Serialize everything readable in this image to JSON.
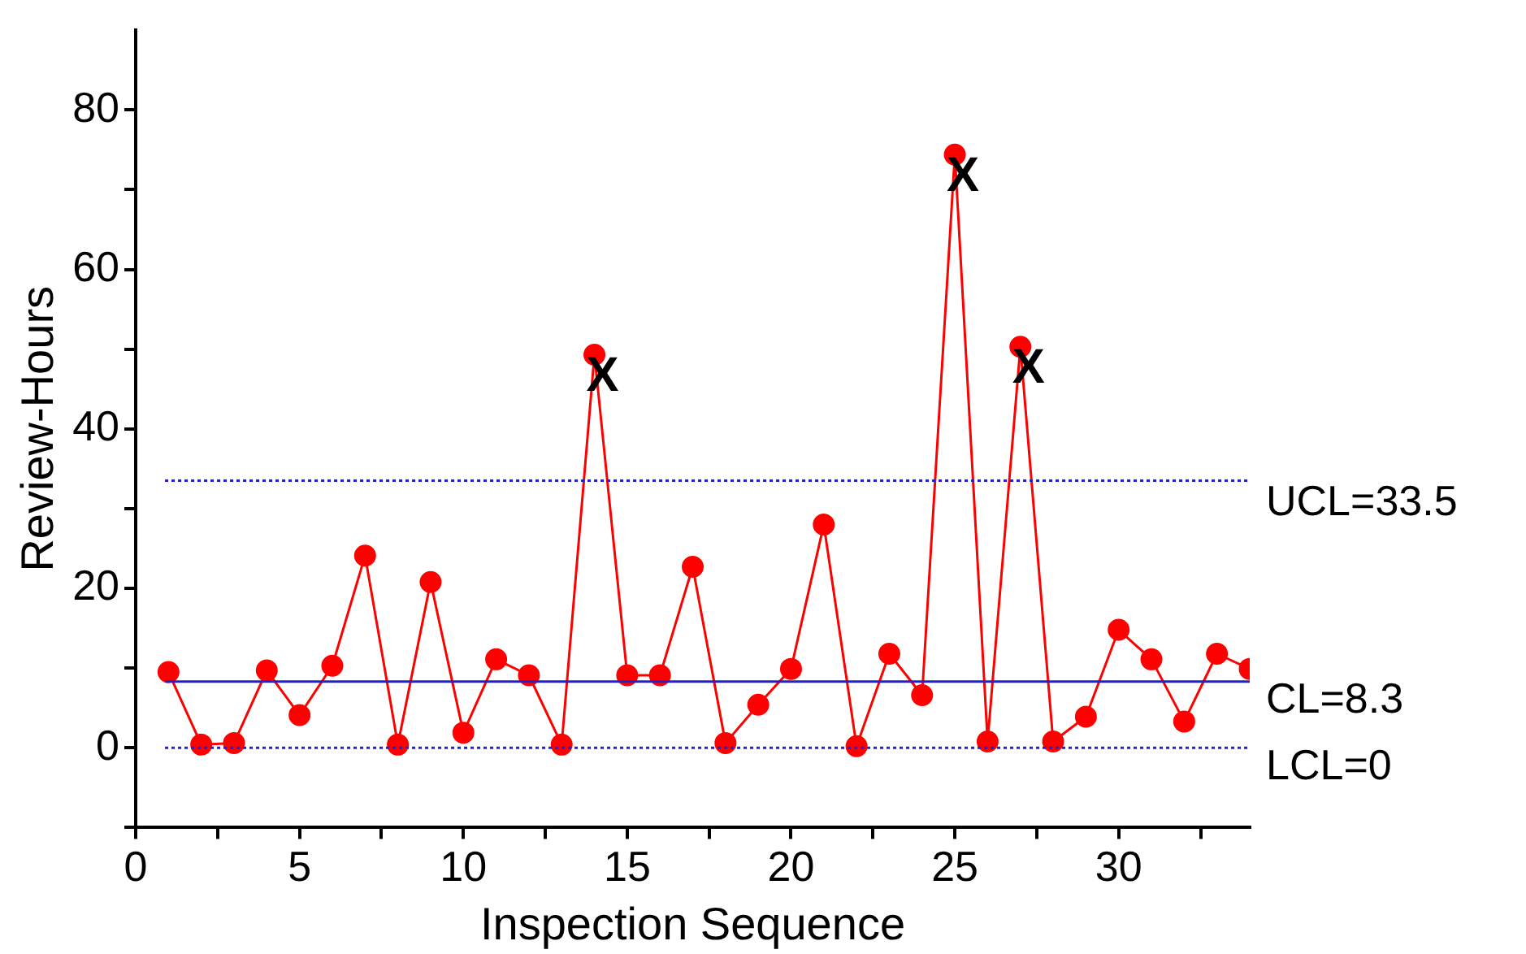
{
  "chart_data": {
    "type": "line",
    "xlabel": "Inspection Sequence",
    "ylabel": "Review-Hours",
    "x": [
      1,
      2,
      3,
      4,
      5,
      6,
      7,
      8,
      9,
      10,
      11,
      12,
      13,
      14,
      15,
      16,
      17,
      18,
      19,
      20,
      21,
      22,
      23,
      24,
      25,
      26,
      27,
      28,
      29,
      30,
      31,
      32,
      33,
      34
    ],
    "series": [
      {
        "color": "#ff0000",
        "values": [
          9.5,
          0.4,
          0.6,
          9.7,
          4.1,
          10.3,
          24.1,
          0.4,
          20.8,
          1.9,
          11.1,
          9.1,
          0.4,
          49.3,
          9.1,
          9.1,
          22.7,
          0.6,
          5.4,
          9.9,
          28,
          0.2,
          11.8,
          6.6,
          74.4,
          0.8,
          50.3,
          0.8,
          3.9,
          14.8,
          11.1,
          3.3,
          11.8,
          9.9
        ]
      }
    ],
    "xlim": [
      0,
      34
    ],
    "xticks": [
      0,
      {
        "value": 2.5,
        "label": null
      },
      5,
      {
        "value": 7.5,
        "label": null
      },
      10,
      {
        "value": 12.5,
        "label": null
      },
      15,
      {
        "value": 17.5,
        "label": null
      },
      20,
      {
        "value": 22.5,
        "label": null
      },
      25,
      {
        "value": 27.5,
        "label": null
      },
      30,
      {
        "value": 32.5,
        "label": null
      }
    ],
    "ylim": [
      -10,
      90
    ],
    "yticks": [
      {
        "value": -10,
        "label": null
      },
      0,
      {
        "value": 10,
        "label": null
      },
      20,
      {
        "value": 30,
        "label": null
      },
      40,
      {
        "value": 50,
        "label": null
      },
      60,
      {
        "value": 70,
        "label": null
      },
      80
    ],
    "ref_lines": [
      {
        "axis": "y",
        "value": 33.5,
        "label": "UCL=33.5",
        "color": "#2020d0",
        "line_style": "dotted"
      },
      {
        "axis": "y",
        "value": 8.3,
        "label": "CL=8.3",
        "color": "#2020d0",
        "line_style": "solid"
      },
      {
        "axis": "y",
        "value": 0,
        "label": "LCL=0",
        "color": "#2020d0",
        "line_style": "dotted"
      }
    ],
    "annotations": [
      {
        "text": "X",
        "x": 14,
        "y": 49.3
      },
      {
        "text": "X",
        "x": 25,
        "y": 74.4
      },
      {
        "text": "X",
        "x": 27,
        "y": 50.3
      }
    ],
    "marker": "circle",
    "line_style": "solid",
    "grid": false,
    "legend": false
  }
}
